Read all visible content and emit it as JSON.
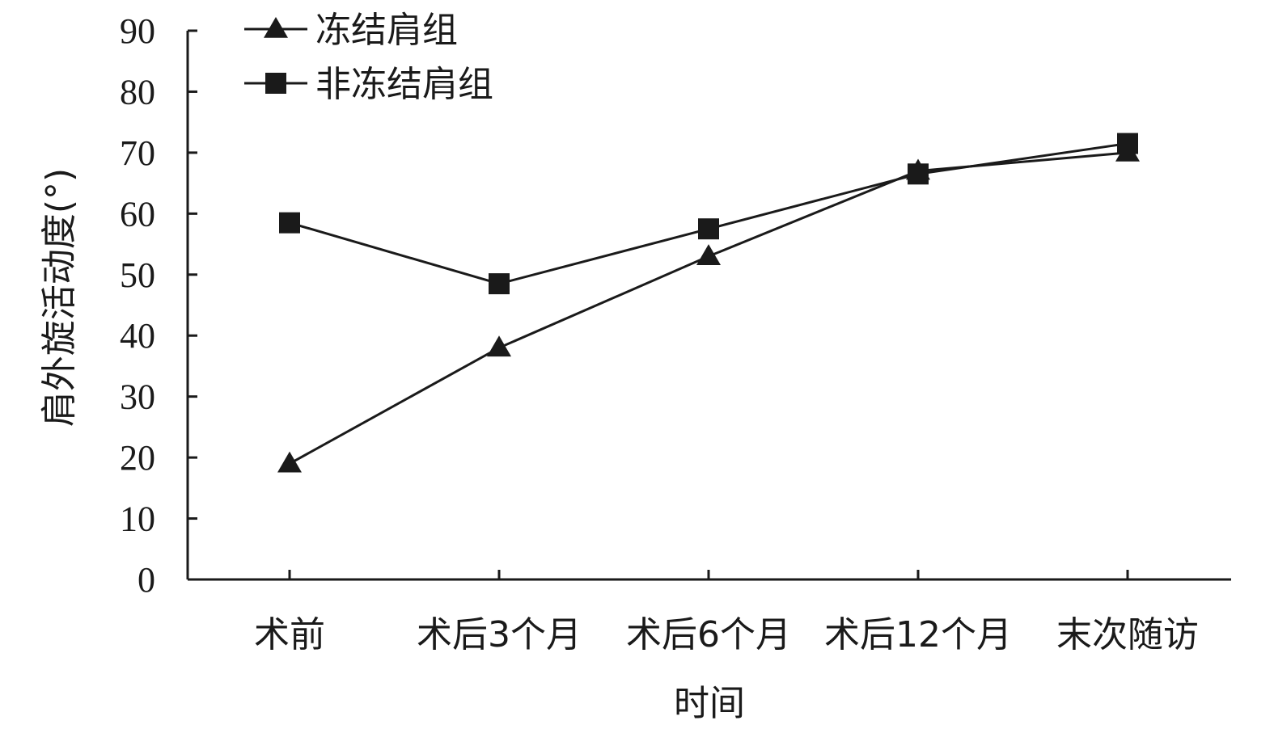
{
  "chart_data": {
    "type": "line",
    "title": "",
    "xlabel": "时间",
    "ylabel": "肩外旋活动度(°)",
    "categories": [
      "术前",
      "术后3个月",
      "术后6个月",
      "术后12个月",
      "末次随访"
    ],
    "ylim": [
      0,
      90
    ],
    "yticks": [
      0,
      10,
      20,
      30,
      40,
      50,
      60,
      70,
      80,
      90
    ],
    "grid": false,
    "legend_position": "top-left",
    "series": [
      {
        "name": "冻结肩组",
        "marker": "triangle",
        "color": "#1a1a1a",
        "values": [
          19,
          38,
          53,
          67,
          70
        ]
      },
      {
        "name": "非冻结肩组",
        "marker": "square",
        "color": "#1a1a1a",
        "values": [
          58.5,
          48.5,
          57.5,
          66.5,
          71.5
        ]
      }
    ]
  }
}
